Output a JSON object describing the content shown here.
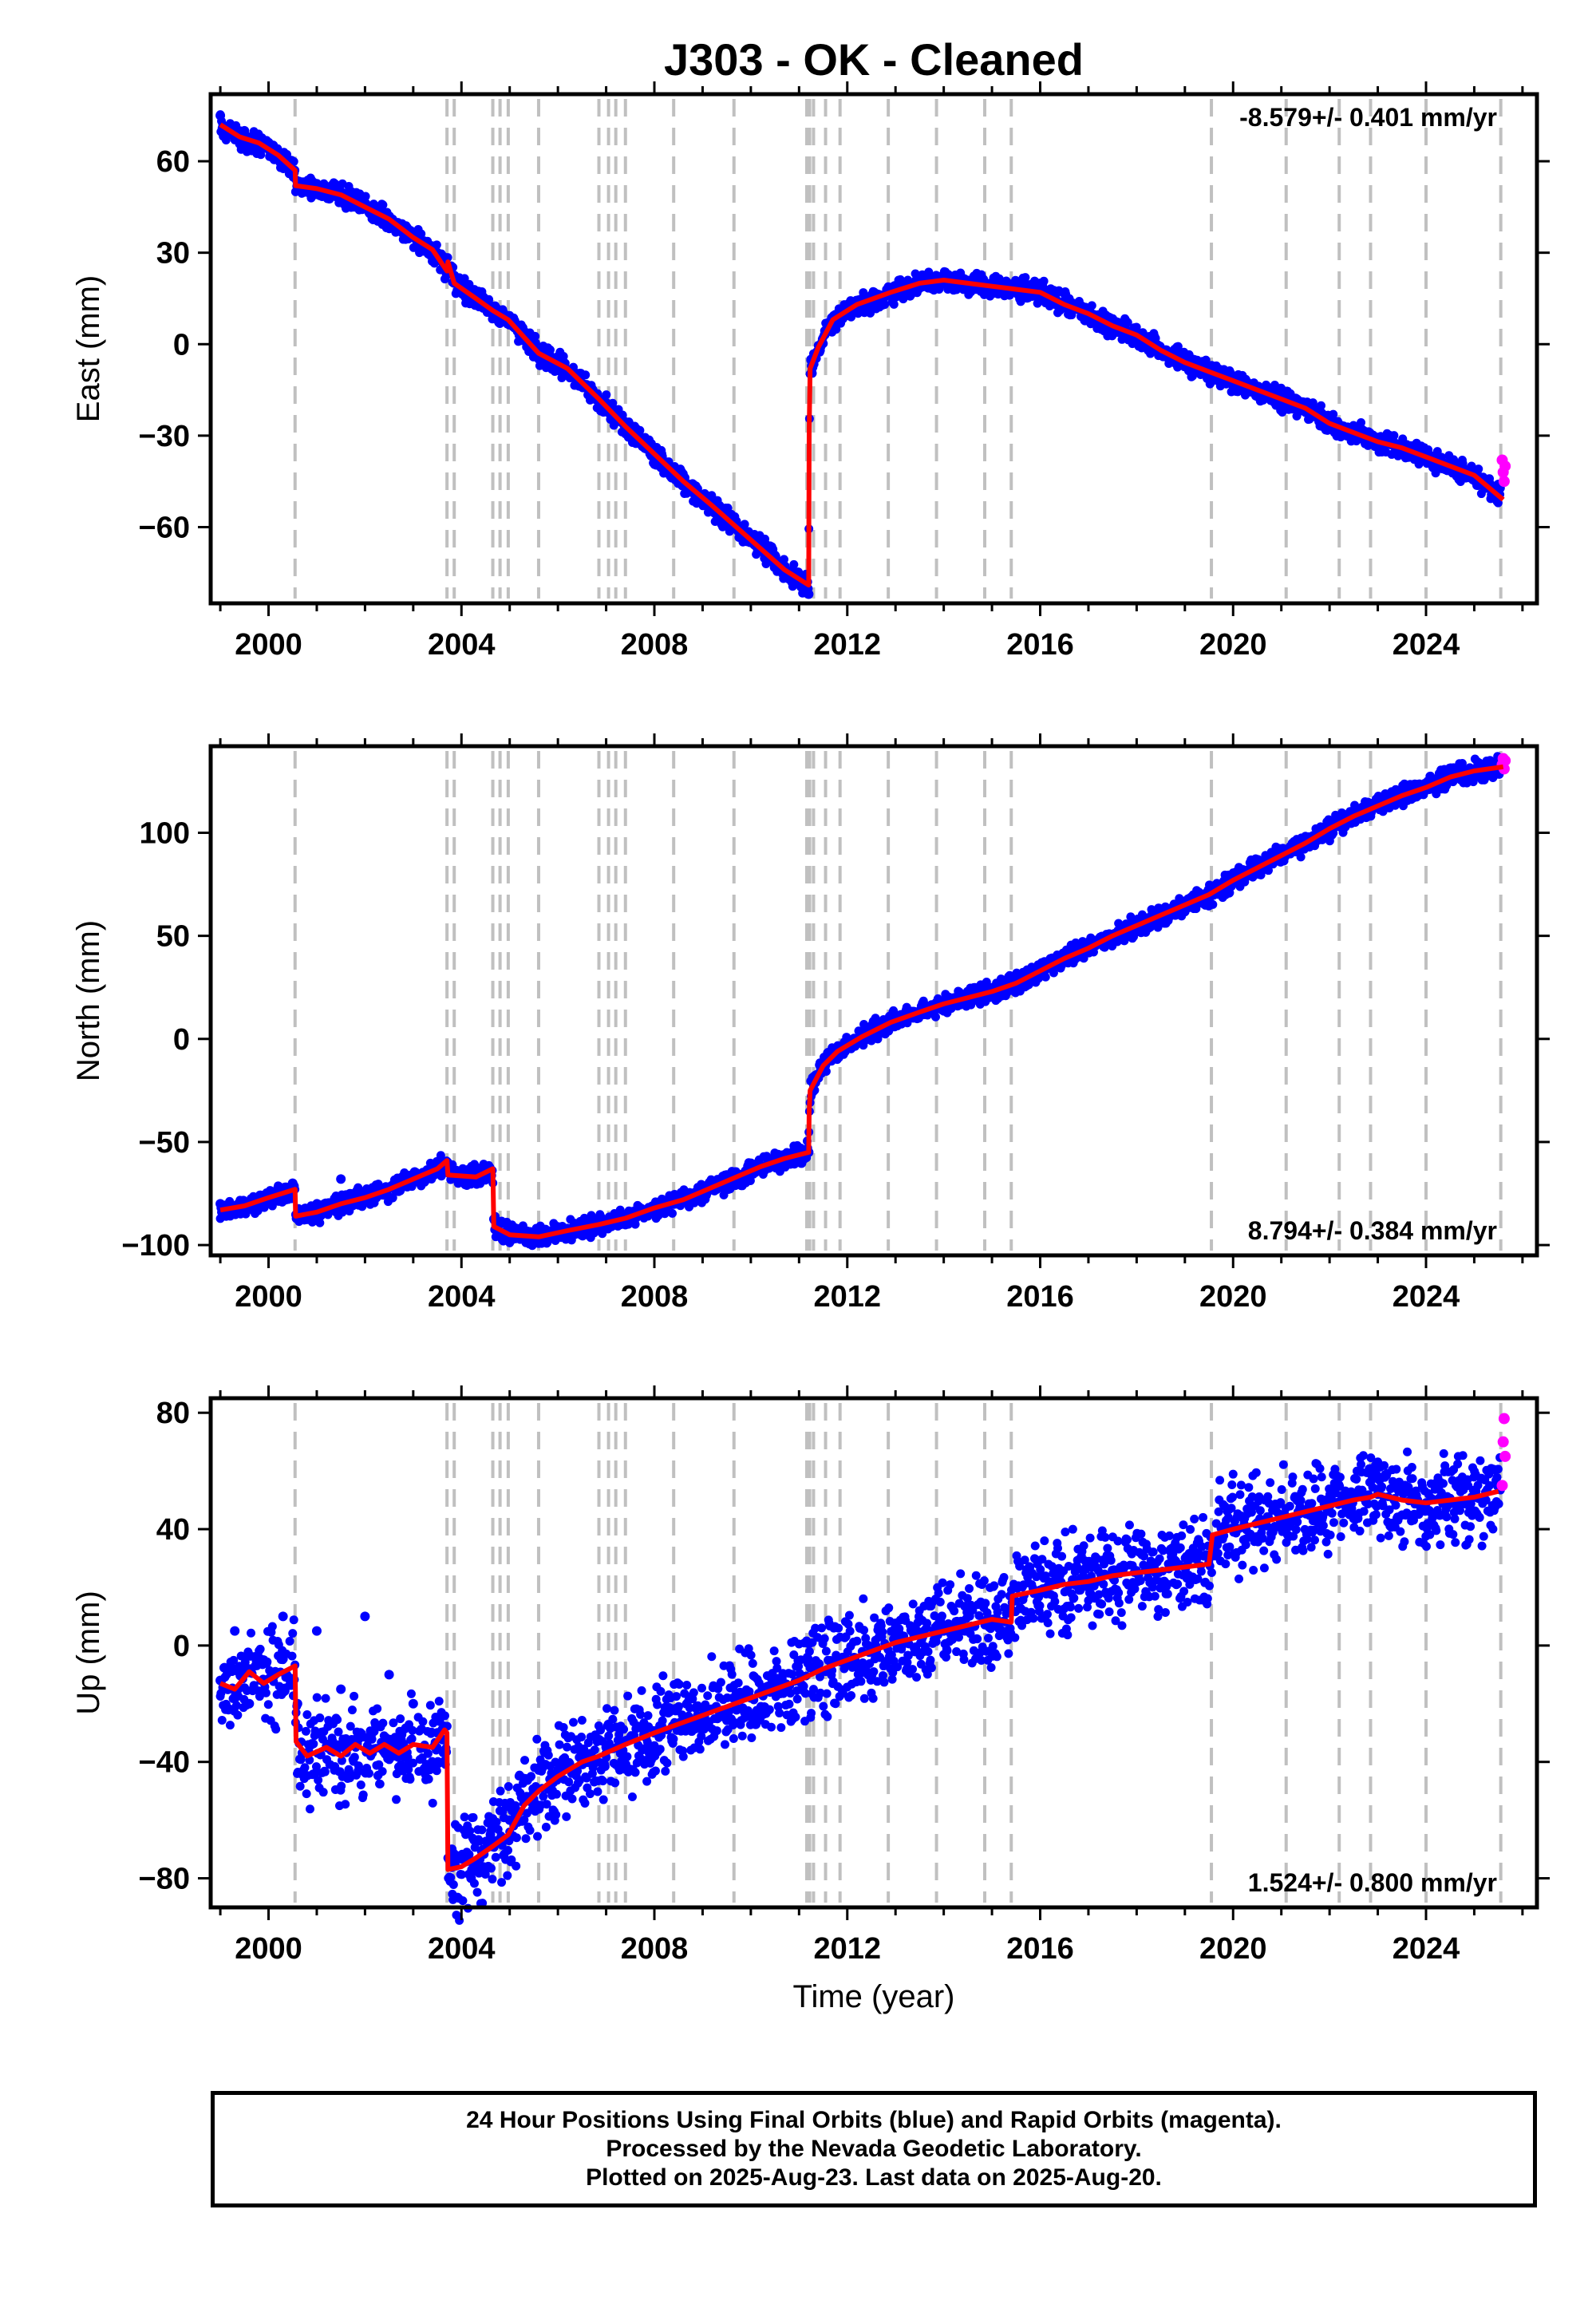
{
  "title": "J303  - OK - Cleaned",
  "colors": {
    "final": "#0000ff",
    "rapid": "#ff00ff",
    "model": "#ff0000",
    "event": "#c0c0c0"
  },
  "xlabel": "Time (year)",
  "footer": {
    "line1": "24 Hour Positions Using Final Orbits (blue) and Rapid Orbits (magenta).",
    "line2": "Processed by the Nevada Geodetic Laboratory.",
    "line3": "Plotted on 2025-Aug-23. Last data on 2025-Aug-20."
  },
  "chart_data": [
    {
      "type": "scatter",
      "name": "east",
      "ylabel": "East (mm)",
      "rate": "-8.579+/- 0.401 mm/yr",
      "xlim": [
        1998.8,
        2026.3
      ],
      "ylim": [
        -85,
        82
      ],
      "xticks": [
        2000,
        2004,
        2008,
        2012,
        2016,
        2020,
        2024
      ],
      "yticks": [
        -60,
        -30,
        0,
        30,
        60
      ],
      "events": [
        2000.55,
        2003.7,
        2003.85,
        2004.65,
        2004.8,
        2004.97,
        2005.6,
        2006.85,
        2007.05,
        2007.2,
        2007.4,
        2008.4,
        2009.65,
        2011.16,
        2011.22,
        2011.3,
        2011.55,
        2011.85,
        2012.85,
        2013.85,
        2014.85,
        2015.4,
        2019.55,
        2021.1,
        2022.2,
        2022.85,
        2024.0,
        2025.55
      ],
      "model": [
        [
          1999.0,
          72
        ],
        [
          1999.4,
          68
        ],
        [
          1999.8,
          66
        ],
        [
          2000.2,
          62
        ],
        [
          2000.55,
          57
        ],
        [
          2000.56,
          52
        ],
        [
          2001.0,
          51
        ],
        [
          2001.5,
          49
        ],
        [
          2002.0,
          45
        ],
        [
          2002.5,
          41
        ],
        [
          2003.0,
          35
        ],
        [
          2003.4,
          31
        ],
        [
          2003.7,
          24
        ],
        [
          2003.72,
          27
        ],
        [
          2003.85,
          20
        ],
        [
          2004.3,
          15
        ],
        [
          2004.65,
          11
        ],
        [
          2004.97,
          8
        ],
        [
          2005.6,
          -3
        ],
        [
          2006.2,
          -8
        ],
        [
          2006.85,
          -18
        ],
        [
          2007.4,
          -27
        ],
        [
          2008.0,
          -36
        ],
        [
          2008.6,
          -45
        ],
        [
          2009.2,
          -53
        ],
        [
          2009.7,
          -60
        ],
        [
          2010.2,
          -67
        ],
        [
          2010.7,
          -74
        ],
        [
          2011.2,
          -79
        ],
        [
          2011.21,
          -28
        ],
        [
          2011.23,
          -8
        ],
        [
          2011.4,
          -1
        ],
        [
          2011.7,
          8
        ],
        [
          2012.2,
          13
        ],
        [
          2012.9,
          17
        ],
        [
          2013.5,
          20
        ],
        [
          2014.0,
          21
        ],
        [
          2014.5,
          20
        ],
        [
          2015.0,
          19
        ],
        [
          2015.5,
          18
        ],
        [
          2016.0,
          17
        ],
        [
          2016.5,
          13
        ],
        [
          2017.0,
          10
        ],
        [
          2017.5,
          6
        ],
        [
          2018.0,
          3
        ],
        [
          2018.5,
          -2
        ],
        [
          2019.0,
          -6
        ],
        [
          2019.5,
          -9
        ],
        [
          2020.0,
          -12
        ],
        [
          2020.5,
          -15
        ],
        [
          2021.0,
          -18
        ],
        [
          2021.5,
          -21
        ],
        [
          2022.0,
          -26
        ],
        [
          2022.5,
          -29
        ],
        [
          2023.0,
          -32
        ],
        [
          2023.5,
          -34
        ],
        [
          2024.0,
          -37
        ],
        [
          2024.5,
          -40
        ],
        [
          2025.0,
          -43
        ],
        [
          2025.6,
          -51
        ]
      ],
      "observations": [
        [
          1999.0,
          75
        ],
        [
          1999.5,
          70
        ],
        [
          2000.0,
          64
        ],
        [
          2000.6,
          53
        ],
        [
          2001.5,
          50
        ],
        [
          2002.5,
          42
        ],
        [
          2003.5,
          30
        ],
        [
          2004.0,
          20
        ],
        [
          2005.0,
          7
        ],
        [
          2006.0,
          -6
        ],
        [
          2007.0,
          -20
        ],
        [
          2008.0,
          -36
        ],
        [
          2009.0,
          -51
        ],
        [
          2010.0,
          -63
        ],
        [
          2010.8,
          -75
        ],
        [
          2011.2,
          -82
        ],
        [
          2011.25,
          -5
        ],
        [
          2011.6,
          7
        ],
        [
          2012.5,
          16
        ],
        [
          2013.5,
          20
        ],
        [
          2014.5,
          20
        ],
        [
          2015.5,
          18
        ],
        [
          2016.5,
          13
        ],
        [
          2017.5,
          6
        ],
        [
          2018.5,
          -2
        ],
        [
          2019.5,
          -9
        ],
        [
          2020.5,
          -15
        ],
        [
          2021.5,
          -21
        ],
        [
          2022.5,
          -29
        ],
        [
          2023.5,
          -34
        ],
        [
          2024.5,
          -40
        ],
        [
          2025.5,
          -46
        ]
      ],
      "rapid": [
        [
          2025.58,
          -38
        ],
        [
          2025.6,
          -42
        ],
        [
          2025.62,
          -45
        ],
        [
          2025.64,
          -40
        ]
      ]
    },
    {
      "type": "scatter",
      "name": "north",
      "ylabel": "North (mm)",
      "rate": "8.794+/- 0.384 mm/yr",
      "xlim": [
        1998.8,
        2026.3
      ],
      "ylim": [
        -105,
        142
      ],
      "xticks": [
        2000,
        2004,
        2008,
        2012,
        2016,
        2020,
        2024
      ],
      "yticks": [
        -100,
        -50,
        0,
        50,
        100
      ],
      "events": [
        2000.55,
        2003.7,
        2003.85,
        2004.65,
        2004.8,
        2004.97,
        2005.6,
        2006.85,
        2007.05,
        2007.2,
        2007.4,
        2008.4,
        2009.65,
        2011.16,
        2011.22,
        2011.3,
        2011.55,
        2011.85,
        2012.85,
        2013.85,
        2014.85,
        2015.4,
        2019.55,
        2021.1,
        2022.2,
        2022.85,
        2024.0,
        2025.55
      ],
      "model": [
        [
          1999.0,
          -83
        ],
        [
          1999.5,
          -81
        ],
        [
          2000.0,
          -77
        ],
        [
          2000.55,
          -73
        ],
        [
          2000.56,
          -86
        ],
        [
          2001.0,
          -84
        ],
        [
          2001.5,
          -80
        ],
        [
          2002.0,
          -77
        ],
        [
          2002.5,
          -73
        ],
        [
          2003.0,
          -68
        ],
        [
          2003.5,
          -63
        ],
        [
          2003.7,
          -59
        ],
        [
          2003.72,
          -66
        ],
        [
          2004.3,
          -67
        ],
        [
          2004.65,
          -63
        ],
        [
          2004.67,
          -91
        ],
        [
          2005.0,
          -95
        ],
        [
          2005.6,
          -96
        ],
        [
          2006.2,
          -93
        ],
        [
          2006.85,
          -90
        ],
        [
          2007.4,
          -87
        ],
        [
          2008.0,
          -82
        ],
        [
          2008.6,
          -78
        ],
        [
          2009.2,
          -72
        ],
        [
          2009.7,
          -67
        ],
        [
          2010.2,
          -62
        ],
        [
          2010.7,
          -58
        ],
        [
          2011.2,
          -55
        ],
        [
          2011.21,
          -35
        ],
        [
          2011.23,
          -25
        ],
        [
          2011.5,
          -13
        ],
        [
          2011.8,
          -6
        ],
        [
          2012.3,
          1
        ],
        [
          2012.9,
          8
        ],
        [
          2013.5,
          13
        ],
        [
          2014.0,
          17
        ],
        [
          2014.5,
          20
        ],
        [
          2015.0,
          23
        ],
        [
          2015.5,
          27
        ],
        [
          2016.0,
          33
        ],
        [
          2016.5,
          39
        ],
        [
          2017.0,
          44
        ],
        [
          2017.5,
          50
        ],
        [
          2018.0,
          55
        ],
        [
          2018.5,
          60
        ],
        [
          2019.0,
          65
        ],
        [
          2019.5,
          70
        ],
        [
          2020.0,
          77
        ],
        [
          2020.5,
          83
        ],
        [
          2021.0,
          89
        ],
        [
          2021.5,
          95
        ],
        [
          2022.0,
          102
        ],
        [
          2022.5,
          108
        ],
        [
          2023.0,
          113
        ],
        [
          2023.5,
          118
        ],
        [
          2024.0,
          122
        ],
        [
          2024.5,
          127
        ],
        [
          2025.0,
          130
        ],
        [
          2025.6,
          132
        ]
      ],
      "observations": [
        [
          1999.0,
          -80
        ],
        [
          1999.5,
          -82
        ],
        [
          2000.0,
          -76
        ],
        [
          2000.5,
          -70
        ],
        [
          2001.5,
          -68
        ],
        [
          2002.5,
          -72
        ],
        [
          2003.5,
          -65
        ],
        [
          2004.5,
          -62
        ],
        [
          2004.8,
          -95
        ],
        [
          2005.5,
          -98
        ],
        [
          2006.5,
          -92
        ],
        [
          2007.5,
          -88
        ],
        [
          2008.5,
          -78
        ],
        [
          2009.5,
          -68
        ],
        [
          2010.5,
          -60
        ],
        [
          2011.2,
          -55
        ],
        [
          2011.3,
          -20
        ],
        [
          2012.0,
          -2
        ],
        [
          2013.0,
          10
        ],
        [
          2014.0,
          17
        ],
        [
          2015.0,
          23
        ],
        [
          2016.0,
          33
        ],
        [
          2017.0,
          44
        ],
        [
          2018.0,
          55
        ],
        [
          2019.0,
          65
        ],
        [
          2020.0,
          77
        ],
        [
          2021.0,
          89
        ],
        [
          2022.0,
          102
        ],
        [
          2023.0,
          113
        ],
        [
          2024.0,
          122
        ],
        [
          2025.0,
          130
        ]
      ],
      "rapid": [
        [
          2025.58,
          133
        ],
        [
          2025.6,
          136
        ],
        [
          2025.62,
          131
        ],
        [
          2025.64,
          135
        ]
      ]
    },
    {
      "type": "scatter",
      "name": "up",
      "ylabel": "Up (mm)",
      "rate": "1.524+/- 0.800 mm/yr",
      "xlim": [
        1998.8,
        2026.3
      ],
      "ylim": [
        -90,
        85
      ],
      "xticks": [
        2000,
        2004,
        2008,
        2012,
        2016,
        2020,
        2024
      ],
      "yticks": [
        -80,
        -40,
        0,
        40,
        80
      ],
      "events": [
        2000.55,
        2003.7,
        2003.85,
        2004.65,
        2004.8,
        2004.97,
        2005.6,
        2006.85,
        2007.05,
        2007.2,
        2007.4,
        2008.4,
        2009.65,
        2011.16,
        2011.22,
        2011.3,
        2011.55,
        2011.85,
        2012.85,
        2013.85,
        2014.85,
        2015.4,
        2019.55,
        2021.1,
        2022.2,
        2022.85,
        2024.0,
        2025.55
      ],
      "model": [
        [
          1999.0,
          -13
        ],
        [
          1999.3,
          -15
        ],
        [
          1999.6,
          -9
        ],
        [
          1999.9,
          -13
        ],
        [
          2000.2,
          -10
        ],
        [
          2000.55,
          -7
        ],
        [
          2000.57,
          -33
        ],
        [
          2000.8,
          -38
        ],
        [
          2001.2,
          -35
        ],
        [
          2001.5,
          -38
        ],
        [
          2001.8,
          -34
        ],
        [
          2002.1,
          -37
        ],
        [
          2002.4,
          -34
        ],
        [
          2002.7,
          -37
        ],
        [
          2003.0,
          -34
        ],
        [
          2003.4,
          -35
        ],
        [
          2003.65,
          -29
        ],
        [
          2003.7,
          -30
        ],
        [
          2003.72,
          -77
        ],
        [
          2004.0,
          -76
        ],
        [
          2004.3,
          -73
        ],
        [
          2004.65,
          -69
        ],
        [
          2004.97,
          -65
        ],
        [
          2005.3,
          -55
        ],
        [
          2005.6,
          -50
        ],
        [
          2006.0,
          -45
        ],
        [
          2006.5,
          -40
        ],
        [
          2006.85,
          -38
        ],
        [
          2007.4,
          -34
        ],
        [
          2008.0,
          -30
        ],
        [
          2008.5,
          -27
        ],
        [
          2009.0,
          -24
        ],
        [
          2009.5,
          -21
        ],
        [
          2010.0,
          -18
        ],
        [
          2010.5,
          -15
        ],
        [
          2011.0,
          -12
        ],
        [
          2011.5,
          -8
        ],
        [
          2012.0,
          -5
        ],
        [
          2012.5,
          -2
        ],
        [
          2013.0,
          1
        ],
        [
          2013.5,
          3
        ],
        [
          2014.0,
          5
        ],
        [
          2014.5,
          7
        ],
        [
          2015.0,
          9
        ],
        [
          2015.4,
          8
        ],
        [
          2015.42,
          17
        ],
        [
          2016.0,
          19
        ],
        [
          2016.5,
          21
        ],
        [
          2017.0,
          22
        ],
        [
          2017.5,
          24
        ],
        [
          2018.0,
          25
        ],
        [
          2018.5,
          26
        ],
        [
          2019.0,
          27
        ],
        [
          2019.5,
          28
        ],
        [
          2019.57,
          38
        ],
        [
          2020.0,
          40
        ],
        [
          2020.5,
          42
        ],
        [
          2021.0,
          44
        ],
        [
          2021.5,
          46
        ],
        [
          2022.0,
          48
        ],
        [
          2022.5,
          50
        ],
        [
          2022.85,
          51
        ],
        [
          2023.0,
          52
        ],
        [
          2023.5,
          50
        ],
        [
          2024.0,
          49
        ],
        [
          2024.5,
          50
        ],
        [
          2025.0,
          51
        ],
        [
          2025.5,
          53
        ]
      ],
      "observations": [
        [
          1999.0,
          -12
        ],
        [
          1999.3,
          5
        ],
        [
          1999.6,
          -20
        ],
        [
          1999.9,
          -5
        ],
        [
          2000.3,
          10
        ],
        [
          2000.6,
          -20
        ],
        [
          2001.0,
          5
        ],
        [
          2001.5,
          -15
        ],
        [
          2002.0,
          10
        ],
        [
          2002.5,
          -10
        ],
        [
          2003.0,
          -20
        ],
        [
          2003.5,
          -30
        ],
        [
          2003.8,
          -70
        ],
        [
          2004.2,
          -80
        ],
        [
          2004.6,
          -65
        ],
        [
          2005.0,
          -60
        ],
        [
          2005.5,
          -50
        ],
        [
          2006.0,
          -45
        ],
        [
          2006.5,
          -40
        ],
        [
          2007.0,
          -35
        ],
        [
          2008.0,
          -30
        ],
        [
          2009.0,
          -24
        ],
        [
          2010.0,
          -18
        ],
        [
          2011.0,
          -12
        ],
        [
          2012.0,
          -5
        ],
        [
          2013.0,
          1
        ],
        [
          2014.0,
          5
        ],
        [
          2015.0,
          9
        ],
        [
          2016.0,
          19
        ],
        [
          2017.0,
          22
        ],
        [
          2018.0,
          25
        ],
        [
          2019.0,
          27
        ],
        [
          2020.0,
          40
        ],
        [
          2021.0,
          44
        ],
        [
          2022.0,
          48
        ],
        [
          2023.0,
          52
        ],
        [
          2024.0,
          49
        ],
        [
          2025.0,
          51
        ]
      ],
      "rapid": [
        [
          2025.58,
          55
        ],
        [
          2025.6,
          70
        ],
        [
          2025.62,
          78
        ],
        [
          2025.64,
          65
        ]
      ]
    }
  ]
}
